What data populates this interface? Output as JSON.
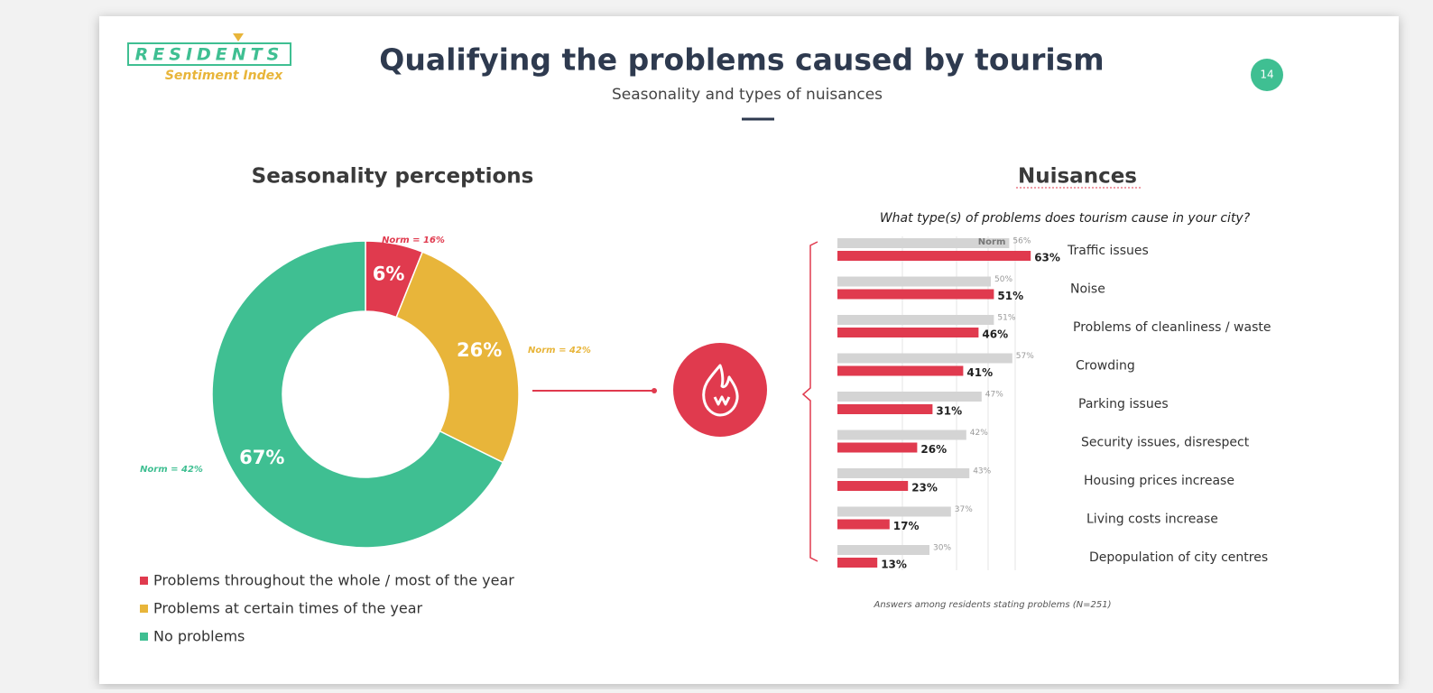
{
  "header": {
    "logo": "RESIDENTS",
    "logo_subtitle": "Sentiment Index",
    "title": "Qualifying the problems caused by tourism",
    "subtitle": "Seasonality and types of nuisances",
    "page_number": "14"
  },
  "chart_data": [
    {
      "type": "pie",
      "donut": true,
      "title": "Seasonality perceptions",
      "categories": [
        "Problems throughout the whole / most of the year",
        "Problems at certain times of the year",
        "No problems"
      ],
      "values": [
        6,
        26,
        67
      ],
      "value_labels": [
        "6%",
        "26%",
        "67%"
      ],
      "colors": [
        "#e03a4e",
        "#e8b53a",
        "#3fbf92"
      ],
      "annotations": [
        "Norm = 16%",
        "Norm = 42%",
        "Norm = 42%"
      ],
      "legend": "bottom-left"
    },
    {
      "type": "bar",
      "orientation": "horizontal",
      "title": "Nuisances",
      "subtitle": "What type(s) of problems does tourism cause in your city?",
      "categories": [
        "Traffic issues",
        "Noise",
        "Problems of cleanliness / waste",
        "Crowding",
        "Parking issues",
        "Security issues, disrespect",
        "Housing prices increase",
        "Living costs increase",
        "Depopulation of city centres"
      ],
      "series": [
        {
          "name": "Norm",
          "color": "#d4d4d4",
          "values": [
            56,
            50,
            51,
            57,
            47,
            42,
            43,
            37,
            30
          ],
          "value_labels": [
            "56%",
            "50%",
            "51%",
            "57%",
            "47%",
            "42%",
            "43%",
            "37%",
            "30%"
          ]
        },
        {
          "color": "#e03a4e",
          "values": [
            63,
            51,
            46,
            41,
            31,
            26,
            23,
            17,
            13
          ],
          "value_labels": [
            "63%",
            "51%",
            "46%",
            "41%",
            "31%",
            "26%",
            "23%",
            "17%",
            "13%"
          ]
        }
      ],
      "xlim": [
        0,
        100
      ],
      "note": "Answers among residents stating problems (N=251)"
    }
  ]
}
